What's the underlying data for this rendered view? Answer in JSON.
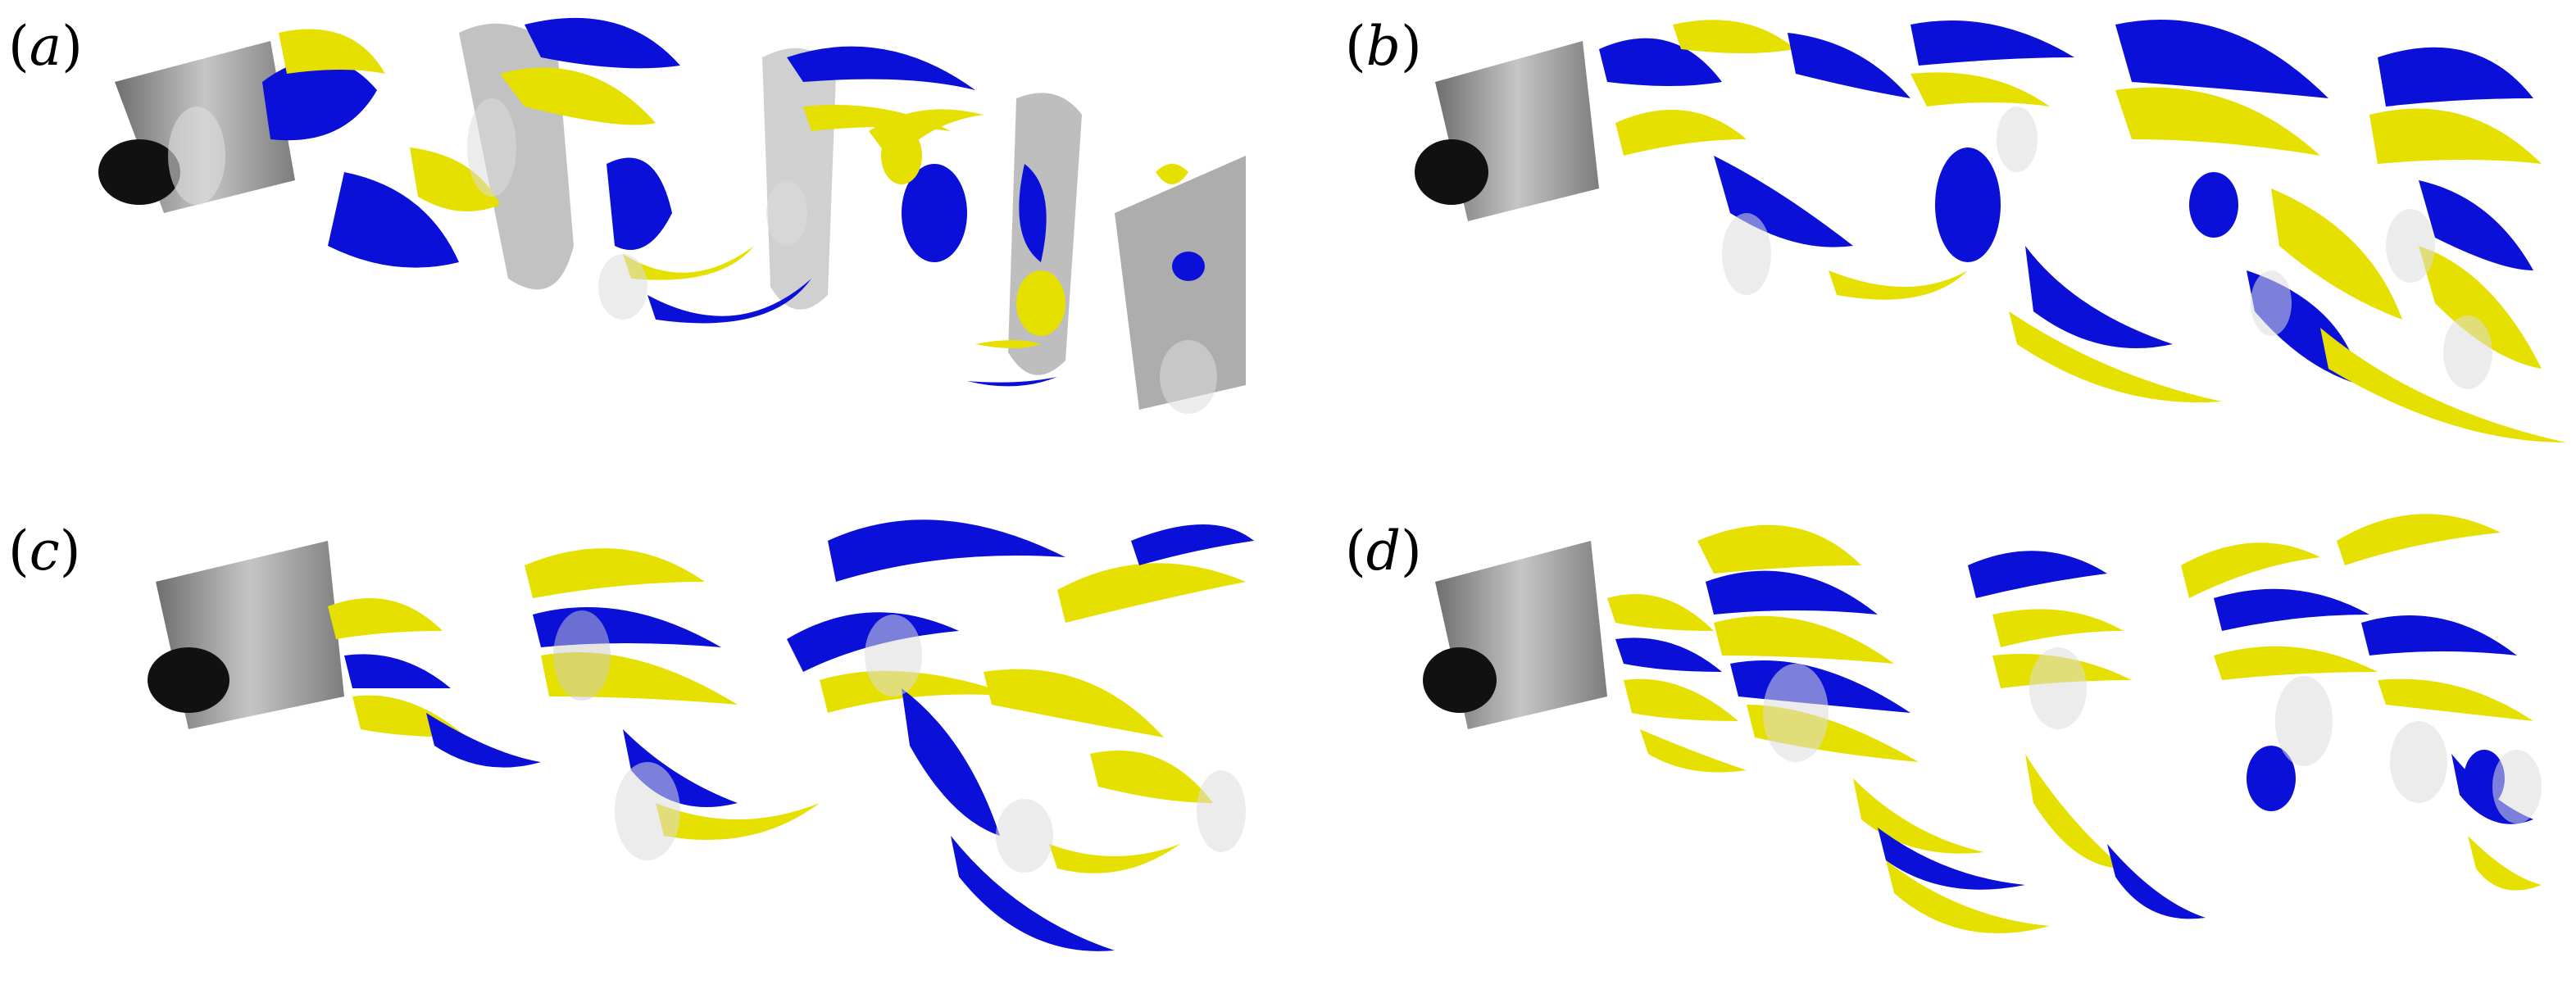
{
  "panels": [
    {
      "id": "a",
      "label_prefix": "(",
      "label_letter": "a",
      "label_suffix": ")"
    },
    {
      "id": "b",
      "label_prefix": "(",
      "label_letter": "b",
      "label_suffix": ")"
    },
    {
      "id": "c",
      "label_prefix": "(",
      "label_letter": "c",
      "label_suffix": ")"
    },
    {
      "id": "d",
      "label_prefix": "(",
      "label_letter": "d",
      "label_suffix": ")"
    }
  ],
  "colors": {
    "blue": "#0a10d8",
    "yellow": "#e6e000",
    "gray": "#8a8a8a",
    "dark": "#1a1a1a"
  }
}
